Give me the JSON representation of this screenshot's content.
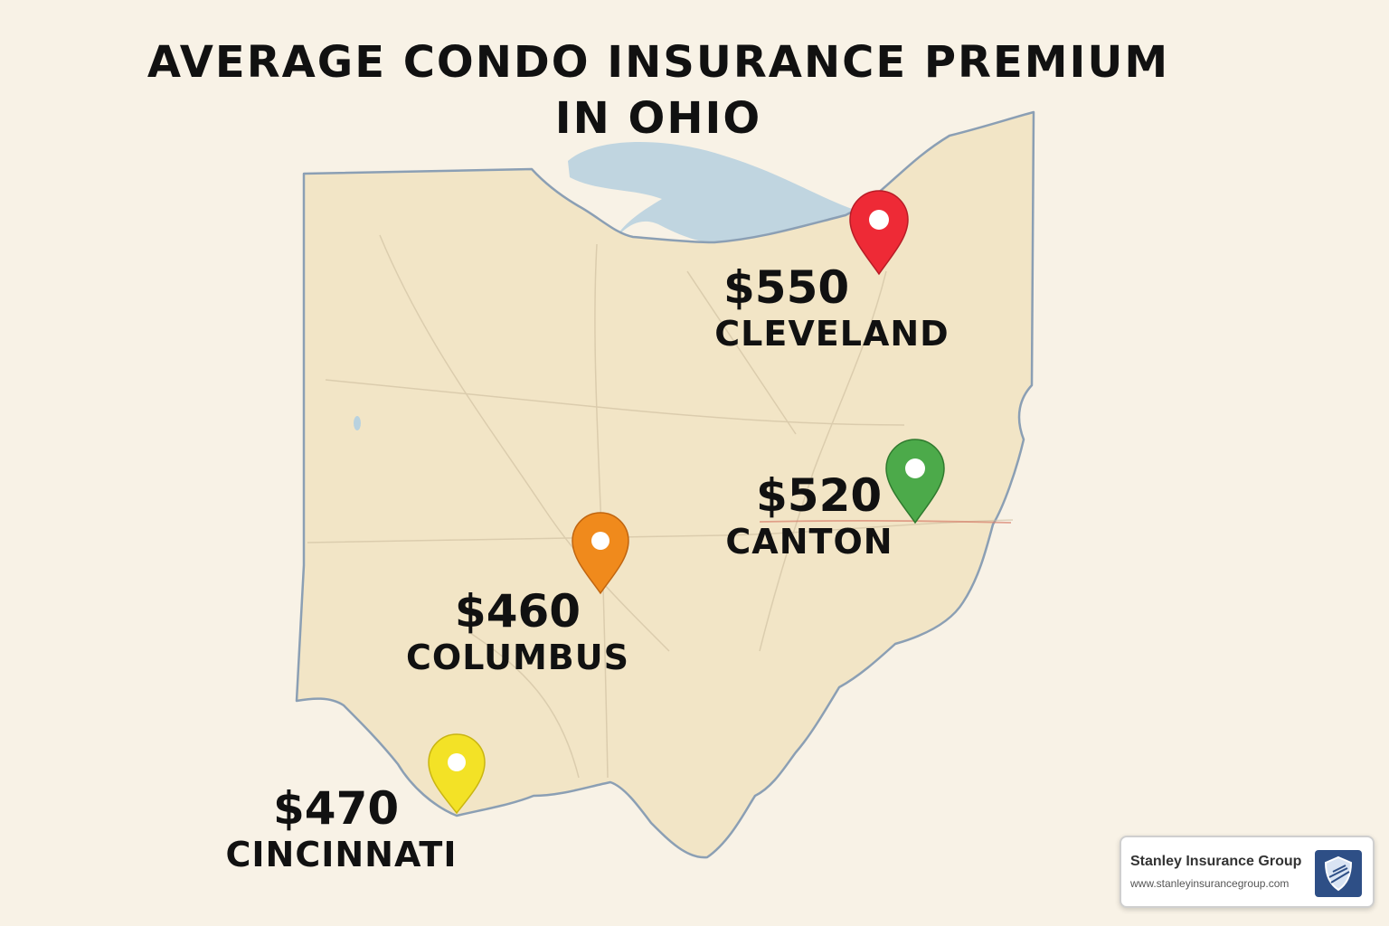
{
  "title": "AVERAGE CONDO INSURANCE PREMIUM IN OHIO",
  "cities": [
    {
      "name": "CLEVELAND",
      "premium": "$550",
      "pin_color": "#ee2a36"
    },
    {
      "name": "CANTON",
      "premium": "$520",
      "pin_color": "#4caa4a"
    },
    {
      "name": "COLUMBUS",
      "premium": "$460",
      "pin_color": "#f08a1c"
    },
    {
      "name": "CINCINNATI",
      "premium": "$470",
      "pin_color": "#f3e226"
    }
  ],
  "brand": {
    "name": "Stanley Insurance Group",
    "url": "www.stanleyinsurancegroup.com",
    "logo_icon": "shield-icon",
    "logo_color": "#2e4f86"
  },
  "colors": {
    "background": "#f8f2e6",
    "land": "#f2e5c6",
    "border": "#8b9fb4",
    "lake": "#b9d2df"
  }
}
